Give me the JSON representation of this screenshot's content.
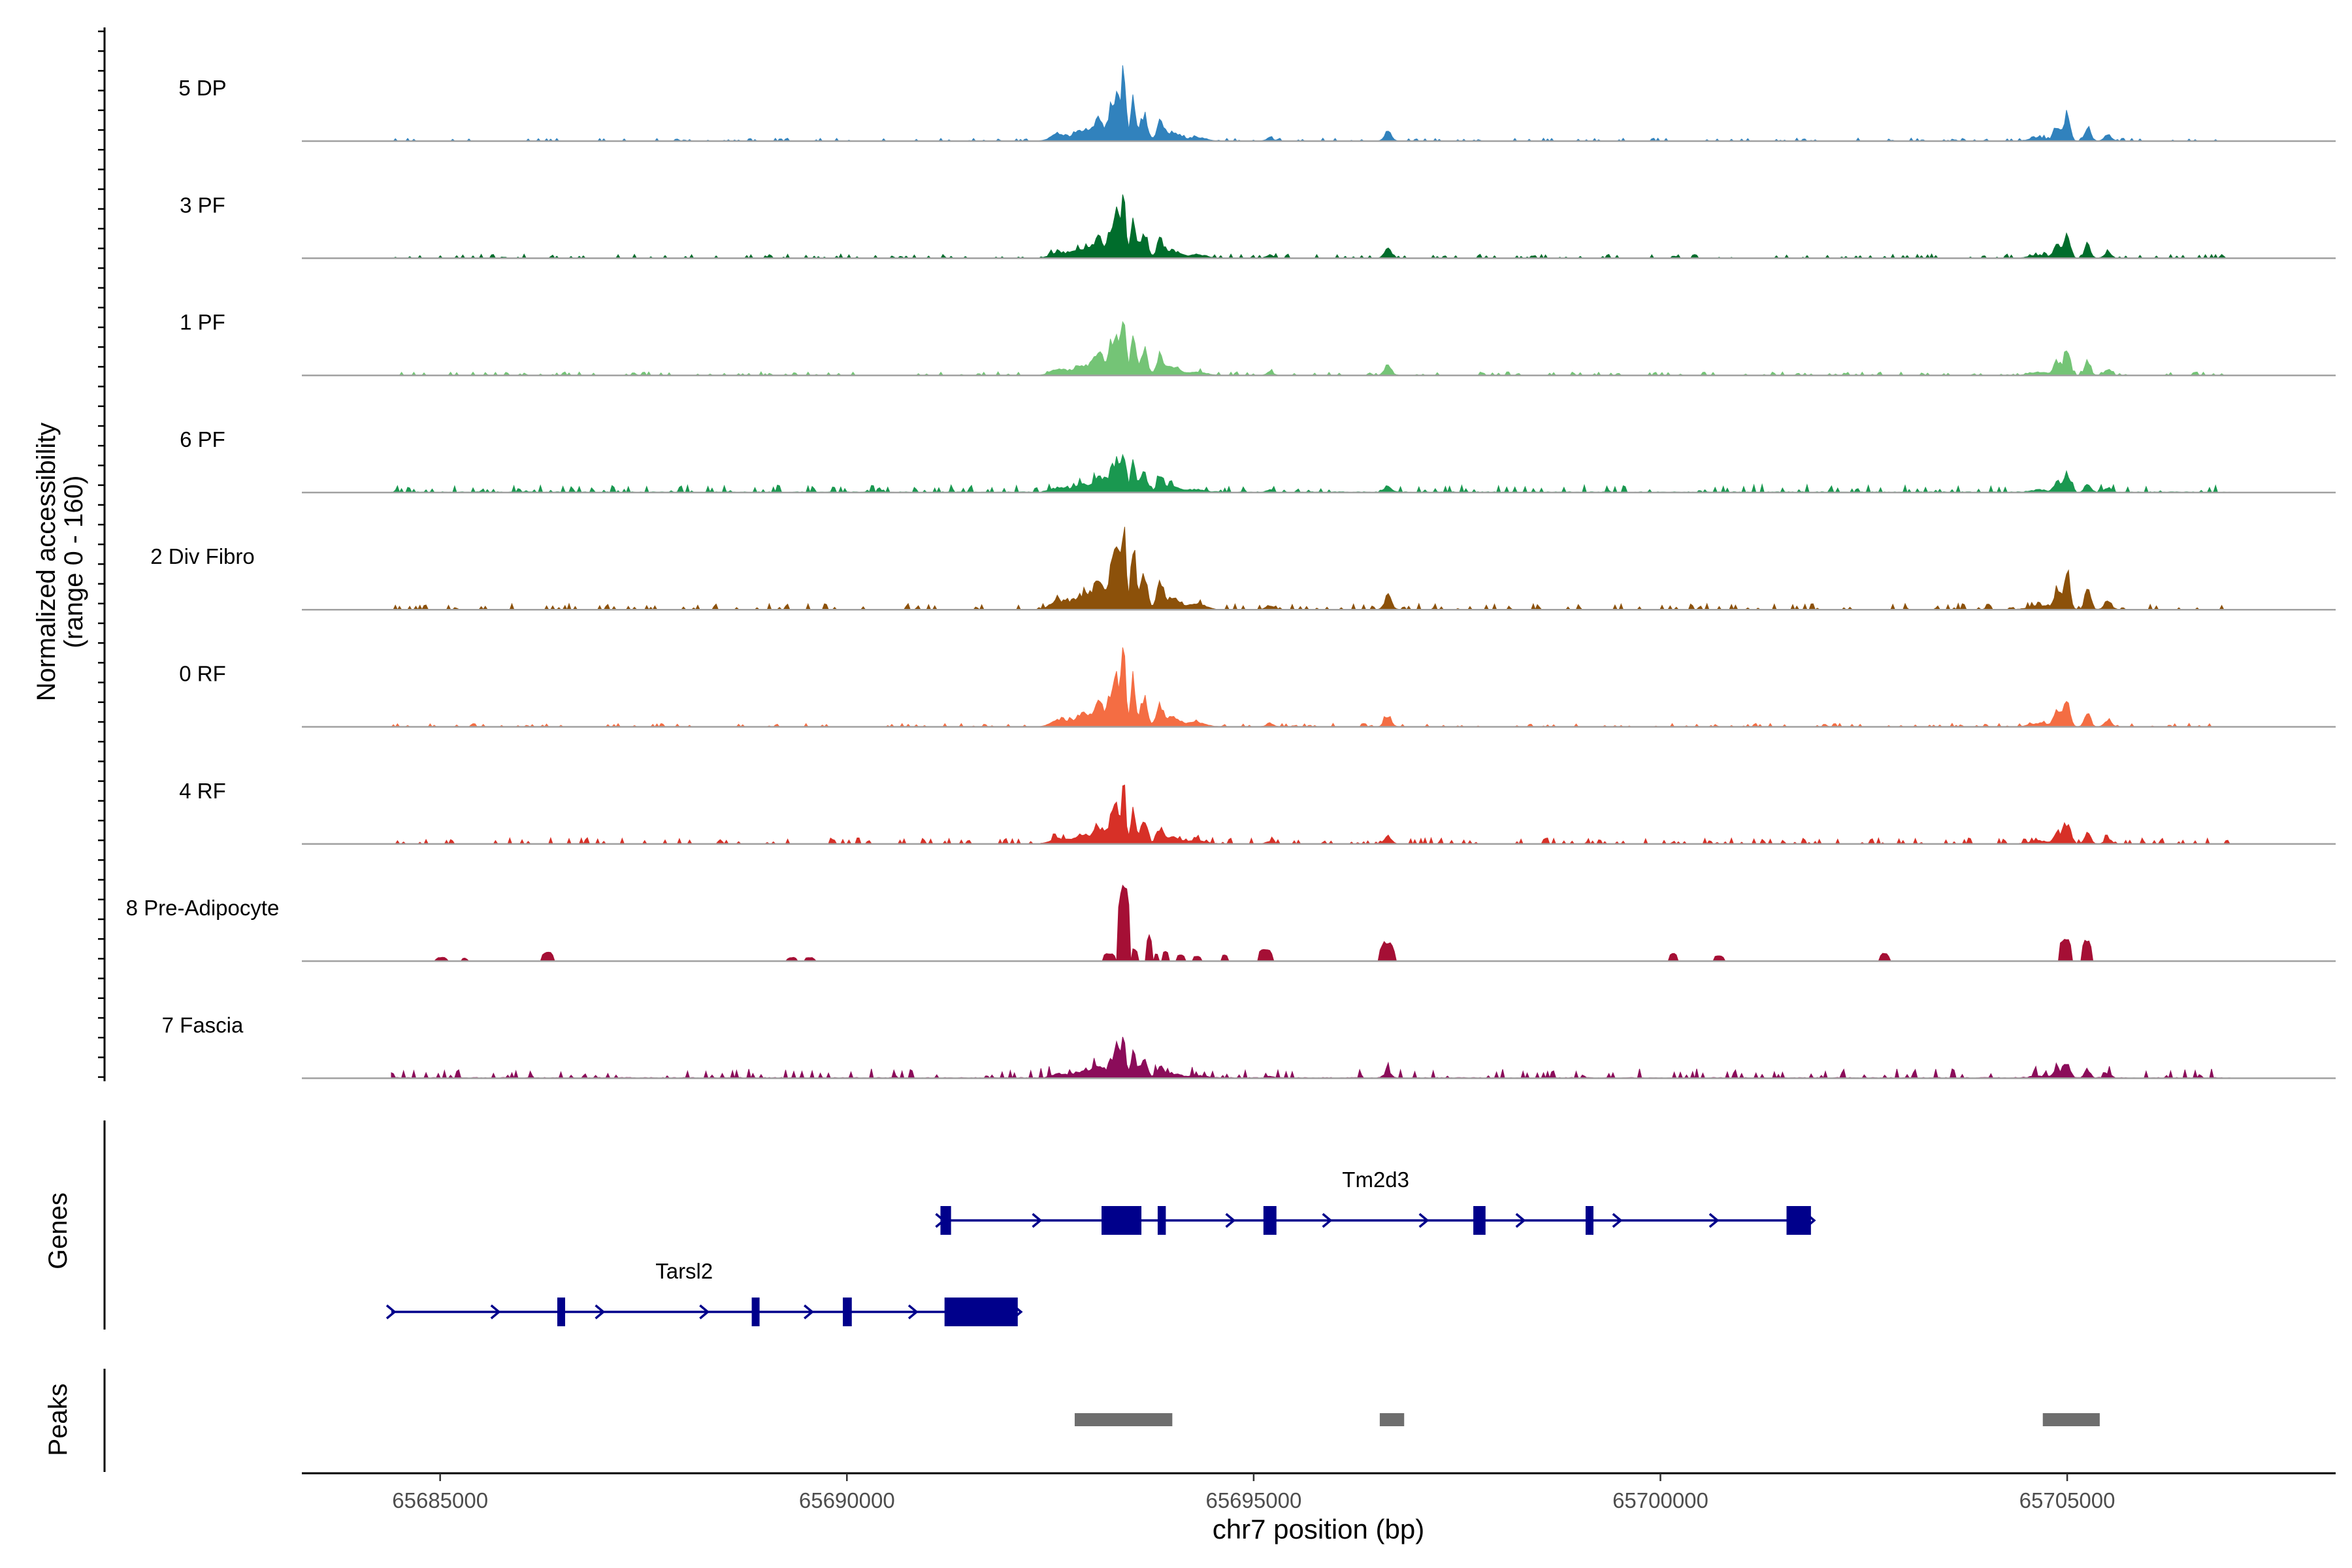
{
  "chart_data": {
    "type": "area",
    "xlabel": "chr7 position (bp)",
    "ylabel_line1": "Normalized accessibility",
    "ylabel_line2": "(range 0 - 160)",
    "y_range": [
      0,
      160
    ],
    "x_range": [
      65683300,
      65708300
    ],
    "x_data_extent": [
      65684400,
      65707000
    ],
    "x_ticks": [
      65685000,
      65690000,
      65695000,
      65700000,
      65705000
    ],
    "x_tick_labels": [
      "65685000",
      "65690000",
      "65695000",
      "65700000",
      "65705000"
    ],
    "tracks": [
      {
        "name": "5 DP",
        "color": "#3182bd",
        "scale": 1.0,
        "baseline": 0.3,
        "noise": 0.9
      },
      {
        "name": "3 PF",
        "color": "#006d2c",
        "scale": 0.95,
        "baseline": 0.5,
        "noise": 1.2
      },
      {
        "name": "1 PF",
        "color": "#74c476",
        "scale": 0.97,
        "baseline": 0.6,
        "noise": 1.0
      },
      {
        "name": "6 PF",
        "color": "#1a9850",
        "scale": 0.7,
        "baseline": 1.3,
        "noise": 2.2
      },
      {
        "name": "2 Div Fibro",
        "color": "#8c510a",
        "scale": 1.35,
        "baseline": 0.7,
        "noise": 1.8
      },
      {
        "name": "0 RF",
        "color": "#f46d43",
        "scale": 1.1,
        "baseline": 0.4,
        "noise": 1.0
      },
      {
        "name": "4 RF",
        "color": "#d73027",
        "scale": 0.82,
        "baseline": 0.7,
        "noise": 1.8
      },
      {
        "name": "8 Pre-Adipocyte",
        "color": "#a50f35",
        "scale": 1.25,
        "baseline": 0.0,
        "noise": 0.0
      },
      {
        "name": "7 Fascia",
        "color": "#8b0c5a",
        "scale": 0.6,
        "baseline": 1.3,
        "noise": 2.8
      }
    ],
    "common_peaks": [
      {
        "pos": 65693400,
        "height": 100,
        "width": 40
      },
      {
        "pos": 65693320,
        "height": 60,
        "width": 40
      },
      {
        "pos": 65693520,
        "height": 70,
        "width": 40
      },
      {
        "pos": 65693250,
        "height": 48,
        "width": 50
      },
      {
        "pos": 65693650,
        "height": 40,
        "width": 60
      },
      {
        "pos": 65693100,
        "height": 30,
        "width": 90
      },
      {
        "pos": 65693850,
        "height": 27,
        "width": 60
      },
      {
        "pos": 65692900,
        "height": 16,
        "width": 150
      },
      {
        "pos": 65694000,
        "height": 12,
        "width": 120
      },
      {
        "pos": 65692600,
        "height": 10,
        "width": 130
      },
      {
        "pos": 65694300,
        "height": 6,
        "width": 150
      },
      {
        "pos": 65696650,
        "height": 15,
        "width": 60
      },
      {
        "pos": 65705000,
        "height": 40,
        "width": 50
      },
      {
        "pos": 65704880,
        "height": 22,
        "width": 60
      },
      {
        "pos": 65705250,
        "height": 22,
        "width": 50
      },
      {
        "pos": 65705500,
        "height": 10,
        "width": 60
      },
      {
        "pos": 65704650,
        "height": 5,
        "width": 150
      },
      {
        "pos": 65695200,
        "height": 5,
        "width": 60
      }
    ],
    "adipocyte_peaks": [
      {
        "start": 65684950,
        "end": 65685080,
        "height": 6
      },
      {
        "start": 65685270,
        "end": 65685330,
        "height": 5
      },
      {
        "start": 65686250,
        "end": 65686390,
        "height": 14
      },
      {
        "start": 65689270,
        "end": 65689380,
        "height": 6
      },
      {
        "start": 65689480,
        "end": 65689600,
        "height": 6
      },
      {
        "start": 65693150,
        "end": 65693300,
        "height": 12
      },
      {
        "start": 65693330,
        "end": 65693480,
        "height": 120
      },
      {
        "start": 65693500,
        "end": 65693570,
        "height": 20
      },
      {
        "start": 65693680,
        "end": 65693750,
        "height": 40
      },
      {
        "start": 65693780,
        "end": 65693840,
        "height": 12
      },
      {
        "start": 65693880,
        "end": 65693950,
        "height": 16
      },
      {
        "start": 65694050,
        "end": 65694150,
        "height": 10
      },
      {
        "start": 65694250,
        "end": 65694350,
        "height": 8
      },
      {
        "start": 65694600,
        "end": 65694680,
        "height": 10
      },
      {
        "start": 65695050,
        "end": 65695230,
        "height": 18
      },
      {
        "start": 65696550,
        "end": 65696730,
        "height": 30
      },
      {
        "start": 65700100,
        "end": 65700210,
        "height": 12
      },
      {
        "start": 65700650,
        "end": 65700780,
        "height": 9
      },
      {
        "start": 65702700,
        "end": 65702810,
        "height": 12
      },
      {
        "start": 65704900,
        "end": 65705050,
        "height": 35
      },
      {
        "start": 65705180,
        "end": 65705300,
        "height": 32
      }
    ],
    "genes_label": "Genes",
    "genes": [
      {
        "name": "Tm2d3",
        "strand": "+",
        "row": 0,
        "start": 65691150,
        "end": 65701850,
        "exons": [
          [
            65691150,
            65691280
          ],
          [
            65693130,
            65693620
          ],
          [
            65693820,
            65693920
          ],
          [
            65695120,
            65695280
          ],
          [
            65697700,
            65697850
          ],
          [
            65699080,
            65699150
          ],
          [
            65701550,
            65701850
          ]
        ]
      },
      {
        "name": "Tarsl2",
        "strand": "+",
        "row": 1,
        "start": 65684400,
        "end": 65692100,
        "exons": [
          [
            65686440,
            65686520
          ],
          [
            65688830,
            65688880
          ],
          [
            65689950,
            65690060
          ],
          [
            65691200,
            65692100
          ]
        ]
      }
    ],
    "peaks_label": "Peaks",
    "peak_regions": [
      {
        "start": 65692800,
        "end": 65694000
      },
      {
        "start": 65696550,
        "end": 65696850
      },
      {
        "start": 65704700,
        "end": 65705400
      }
    ]
  }
}
